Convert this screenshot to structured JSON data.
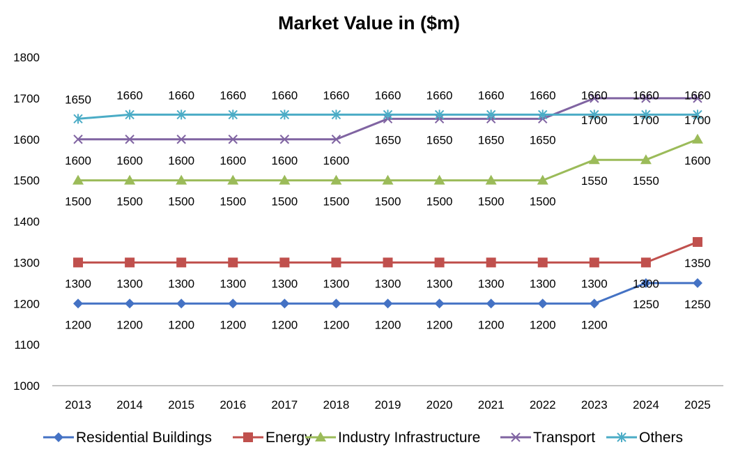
{
  "chart_data": {
    "type": "line",
    "title": "Market Value in ($m)",
    "xlabel": "",
    "ylabel": "",
    "ylim": [
      1000,
      1800
    ],
    "ytick_step": 100,
    "grid": false,
    "legend_position": "bottom",
    "x": [
      "2013",
      "2014",
      "2015",
      "2016",
      "2017",
      "2018",
      "2019",
      "2020",
      "2021",
      "2022",
      "2023",
      "2024",
      "2025"
    ],
    "series": [
      {
        "name": "Residential Buildings",
        "color": "#4472C4",
        "marker": "diamond",
        "values": [
          1200,
          1200,
          1200,
          1200,
          1200,
          1200,
          1200,
          1200,
          1200,
          1200,
          1200,
          1250,
          1250
        ]
      },
      {
        "name": "Energy",
        "color": "#C0504D",
        "marker": "square",
        "values": [
          1300,
          1300,
          1300,
          1300,
          1300,
          1300,
          1300,
          1300,
          1300,
          1300,
          1300,
          1300,
          1350
        ]
      },
      {
        "name": "Industry Infrastructure",
        "color": "#9BBB59",
        "marker": "triangle",
        "values": [
          1500,
          1500,
          1500,
          1500,
          1500,
          1500,
          1500,
          1500,
          1500,
          1500,
          1550,
          1550,
          1600
        ]
      },
      {
        "name": "Transport",
        "color": "#8064A2",
        "marker": "x",
        "values": [
          1600,
          1600,
          1600,
          1600,
          1600,
          1600,
          1650,
          1650,
          1650,
          1650,
          1700,
          1700,
          1700
        ]
      },
      {
        "name": "Others",
        "color": "#4BACC6",
        "marker": "star",
        "values": [
          1650,
          1660,
          1660,
          1660,
          1660,
          1660,
          1660,
          1660,
          1660,
          1660,
          1660,
          1660,
          1660
        ]
      }
    ]
  }
}
